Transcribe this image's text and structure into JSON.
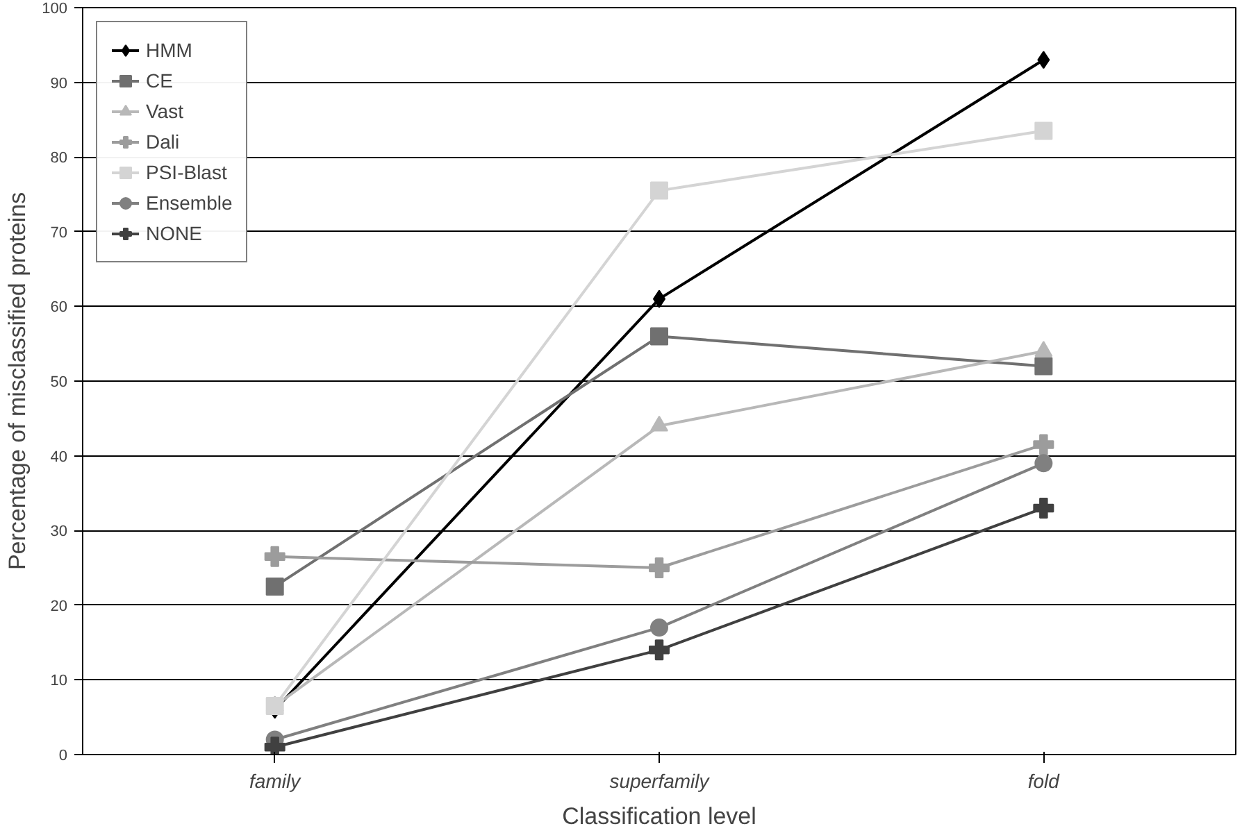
{
  "chart_data": {
    "type": "line",
    "xlabel": "Classification level",
    "ylabel": "Percentage of misclassified proteins",
    "categories": [
      "family",
      "superfamily",
      "fold"
    ],
    "ylim": [
      0,
      100
    ],
    "yticks": [
      0,
      10,
      20,
      30,
      40,
      50,
      60,
      70,
      80,
      90,
      100
    ],
    "grid": "y",
    "legend": "top left",
    "series": [
      {
        "name": "HMM",
        "color": "#000000",
        "marker": "diamond",
        "values": [
          6,
          61,
          93
        ]
      },
      {
        "name": "CE",
        "color": "#707070",
        "marker": "square",
        "values": [
          22.5,
          56,
          52
        ]
      },
      {
        "name": "Vast",
        "color": "#b8b8b8",
        "marker": "triangle",
        "values": [
          6.5,
          44,
          54
        ]
      },
      {
        "name": "Dali",
        "color": "#9c9c9c",
        "marker": "cross",
        "values": [
          26.5,
          25,
          41.5
        ]
      },
      {
        "name": "PSI-Blast",
        "color": "#d4d4d4",
        "marker": "square",
        "values": [
          6.5,
          75.5,
          83.5
        ]
      },
      {
        "name": "Ensemble",
        "color": "#808080",
        "marker": "circle",
        "values": [
          2,
          17,
          39
        ]
      },
      {
        "name": "NONE",
        "color": "#404040",
        "marker": "cross",
        "values": [
          1,
          14,
          33
        ]
      }
    ]
  }
}
